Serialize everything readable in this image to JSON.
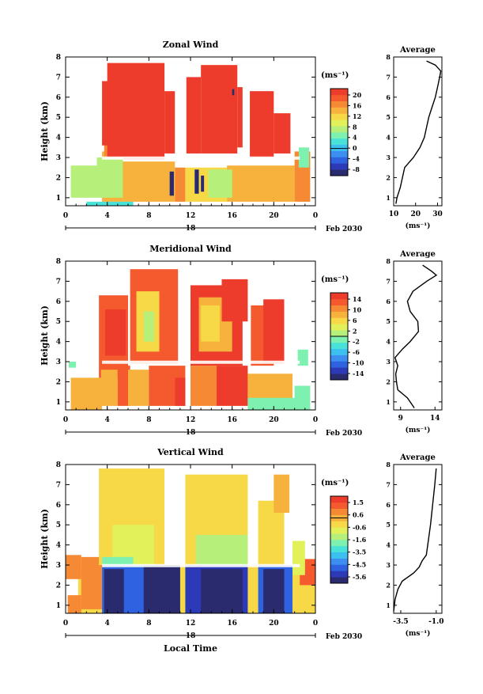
{
  "chart_data": [
    {
      "type": "heatmap",
      "title": "Zonal Wind",
      "ylabel": "Height (km)",
      "unit_label": "(ms⁻¹)",
      "x_ticks": [
        "0",
        "4",
        "8",
        "12",
        "16",
        "20",
        "0"
      ],
      "y_ticks": [
        "1",
        "2",
        "3",
        "4",
        "5",
        "6",
        "7",
        "8"
      ],
      "ylim": [
        0.6,
        8.0
      ],
      "xlim": [
        0,
        24
      ],
      "date_day": "18",
      "date_label": "Feb 2030",
      "colorbar_ticks": [
        "20",
        "16",
        "12",
        "8",
        "4",
        "0",
        "-4",
        "-8"
      ],
      "colorbar_range": [
        -10,
        22
      ],
      "average": {
        "title": "Average",
        "x_ticks": [
          "10",
          "20",
          "30"
        ],
        "xlim": [
          10,
          32
        ],
        "xlabel": "(ms⁻¹)",
        "profile_heights": [
          0.7,
          1.0,
          1.5,
          2.0,
          2.5,
          3.0,
          3.5,
          4.0,
          4.5,
          5.0,
          5.5,
          6.0,
          6.5,
          7.0,
          7.3,
          7.6,
          7.8
        ],
        "profile_values": [
          11,
          11.5,
          13,
          14,
          15,
          19,
          22,
          24,
          25,
          26,
          27.5,
          29,
          30,
          31,
          31.5,
          29,
          25
        ]
      },
      "blocks": [
        {
          "x0": 3.5,
          "x1": 5.5,
          "y0": 0.8,
          "y1": 3.3,
          "v": 14
        },
        {
          "x0": 3.7,
          "x1": 6.0,
          "y0": 3.0,
          "y1": 4.2,
          "v": 16
        },
        {
          "x0": 3.5,
          "x1": 7.0,
          "y0": 3.6,
          "y1": 6.8,
          "v": 22
        },
        {
          "x0": 4.0,
          "x1": 9.5,
          "y0": 2.9,
          "y1": 7.7,
          "v": 22
        },
        {
          "x0": 9.5,
          "x1": 10.5,
          "y0": 3.2,
          "y1": 6.3,
          "v": 22
        },
        {
          "x0": 11.6,
          "x1": 13.0,
          "y0": 3.2,
          "y1": 7.0,
          "v": 22
        },
        {
          "x0": 13.0,
          "x1": 16.5,
          "y0": 3.2,
          "y1": 7.6,
          "v": 22
        },
        {
          "x0": 16.5,
          "x1": 17.0,
          "y0": 3.5,
          "y1": 6.5,
          "v": 22
        },
        {
          "x0": 17.7,
          "x1": 20.0,
          "y0": 3.0,
          "y1": 6.3,
          "v": 22
        },
        {
          "x0": 20.0,
          "x1": 21.6,
          "y0": 3.2,
          "y1": 5.2,
          "v": 22
        },
        {
          "x0": 0.5,
          "x1": 3.0,
          "y0": 1.0,
          "y1": 2.6,
          "v": 6
        },
        {
          "x0": 3.0,
          "x1": 5.5,
          "y0": 1.0,
          "y1": 3.0,
          "v": 8
        },
        {
          "x0": 5.5,
          "x1": 10.5,
          "y0": 0.8,
          "y1": 2.8,
          "v": 14
        },
        {
          "x0": 10.5,
          "x1": 11.5,
          "y0": 0.8,
          "y1": 2.5,
          "v": 16
        },
        {
          "x0": 11.5,
          "x1": 15.5,
          "y0": 0.8,
          "y1": 2.5,
          "v": 12
        },
        {
          "x0": 15.5,
          "x1": 18.0,
          "y0": 0.8,
          "y1": 2.6,
          "v": 14
        },
        {
          "x0": 18.0,
          "x1": 22.0,
          "y0": 0.8,
          "y1": 2.6,
          "v": 14
        },
        {
          "x0": 22.0,
          "x1": 23.5,
          "y0": 0.8,
          "y1": 3.3,
          "v": 16
        },
        {
          "x0": 2.0,
          "x1": 6.5,
          "y0": 0.6,
          "y1": 0.8,
          "v": 2
        },
        {
          "x0": 13.7,
          "x1": 16.0,
          "y0": 1.0,
          "y1": 2.4,
          "v": 8
        },
        {
          "x0": 10.0,
          "x1": 10.4,
          "y0": 1.1,
          "y1": 2.3,
          "v": -8
        },
        {
          "x0": 12.4,
          "x1": 12.8,
          "y0": 1.2,
          "y1": 2.4,
          "v": -8
        },
        {
          "x0": 13.0,
          "x1": 13.3,
          "y0": 1.3,
          "y1": 2.1,
          "v": -8
        },
        {
          "x0": 22.4,
          "x1": 23.4,
          "y0": 2.5,
          "y1": 3.5,
          "v": 4
        },
        {
          "x0": 16.0,
          "x1": 16.2,
          "y0": 6.1,
          "y1": 6.4,
          "v": -8
        }
      ]
    },
    {
      "type": "heatmap",
      "title": "Meridional Wind",
      "ylabel": "Height (km)",
      "unit_label": "(ms⁻¹)",
      "x_ticks": [
        "0",
        "4",
        "8",
        "12",
        "16",
        "20",
        "0"
      ],
      "y_ticks": [
        "1",
        "2",
        "3",
        "4",
        "5",
        "6",
        "7",
        "8"
      ],
      "ylim": [
        0.6,
        8.0
      ],
      "xlim": [
        0,
        24
      ],
      "date_day": "18",
      "date_label": "Feb 2030",
      "colorbar_ticks": [
        "14",
        "10",
        "6",
        "2",
        "-2",
        "-6",
        "-10",
        "-14"
      ],
      "colorbar_range": [
        -16,
        16
      ],
      "average": {
        "title": "Average",
        "x_ticks": [
          "9",
          "14"
        ],
        "xlim": [
          8,
          15
        ],
        "xlabel": "(ms⁻¹)",
        "profile_heights": [
          0.7,
          1.2,
          1.6,
          2.0,
          2.4,
          2.8,
          3.2,
          3.6,
          4.0,
          4.5,
          5.0,
          5.5,
          6.0,
          6.5,
          7.0,
          7.3,
          7.5,
          7.8
        ],
        "profile_values": [
          11,
          10,
          8.6,
          8.4,
          8.3,
          8.6,
          8.2,
          9.2,
          10.4,
          11.6,
          11.5,
          10.4,
          10.0,
          10.8,
          12.8,
          14.2,
          13.5,
          12.2
        ]
      },
      "blocks": [
        {
          "x0": 0.5,
          "x1": 3.5,
          "y0": 0.6,
          "y1": 2.2,
          "v": 7
        },
        {
          "x0": 3.2,
          "x1": 6.0,
          "y0": 2.2,
          "y1": 6.3,
          "v": 12
        },
        {
          "x0": 3.8,
          "x1": 5.8,
          "y0": 3.3,
          "y1": 5.6,
          "v": 16
        },
        {
          "x0": 3.4,
          "x1": 5.0,
          "y0": 0.8,
          "y1": 2.6,
          "v": 8
        },
        {
          "x0": 5.0,
          "x1": 6.2,
          "y0": 0.8,
          "y1": 2.8,
          "v": 12
        },
        {
          "x0": 6.2,
          "x1": 10.8,
          "y0": 2.9,
          "y1": 7.6,
          "v": 12
        },
        {
          "x0": 6.8,
          "x1": 9.0,
          "y0": 3.5,
          "y1": 6.5,
          "v": 6
        },
        {
          "x0": 7.5,
          "x1": 8.5,
          "y0": 4.0,
          "y1": 5.5,
          "v": 2
        },
        {
          "x0": 6.0,
          "x1": 8.0,
          "y0": 0.8,
          "y1": 2.6,
          "v": 7
        },
        {
          "x0": 8.0,
          "x1": 11.5,
          "y0": 0.8,
          "y1": 2.8,
          "v": 12
        },
        {
          "x0": 10.5,
          "x1": 11.5,
          "y0": 0.8,
          "y1": 2.2,
          "v": 16
        },
        {
          "x0": 12.0,
          "x1": 17.0,
          "y0": 2.8,
          "y1": 6.8,
          "v": 14
        },
        {
          "x0": 12.8,
          "x1": 16.0,
          "y0": 3.5,
          "y1": 6.2,
          "v": 8
        },
        {
          "x0": 13.0,
          "x1": 14.8,
          "y0": 4.0,
          "y1": 5.8,
          "v": 6
        },
        {
          "x0": 15.0,
          "x1": 17.5,
          "y0": 5.0,
          "y1": 7.1,
          "v": 16
        },
        {
          "x0": 12.0,
          "x1": 14.5,
          "y0": 0.8,
          "y1": 2.8,
          "v": 10
        },
        {
          "x0": 14.5,
          "x1": 17.5,
          "y0": 0.8,
          "y1": 2.8,
          "v": 16
        },
        {
          "x0": 17.5,
          "x1": 21.8,
          "y0": 0.8,
          "y1": 2.4,
          "v": 8
        },
        {
          "x0": 17.8,
          "x1": 20.0,
          "y0": 2.8,
          "y1": 5.8,
          "v": 12
        },
        {
          "x0": 19.0,
          "x1": 21.0,
          "y0": 2.9,
          "y1": 6.1,
          "v": 16
        },
        {
          "x0": 17.5,
          "x1": 23.5,
          "y0": 0.6,
          "y1": 1.2,
          "v": -1
        },
        {
          "x0": 22.0,
          "x1": 23.5,
          "y0": 1.0,
          "y1": 1.8,
          "v": -2
        },
        {
          "x0": 22.3,
          "x1": 23.3,
          "y0": 2.8,
          "y1": 3.6,
          "v": -2
        },
        {
          "x0": 0.3,
          "x1": 1.0,
          "y0": 2.7,
          "y1": 3.0,
          "v": -1
        }
      ]
    },
    {
      "type": "heatmap",
      "title": "Vertical Wind",
      "ylabel": "Height (km)",
      "xlabel": "Local Time",
      "unit_label": "(ms⁻¹)",
      "x_ticks": [
        "0",
        "4",
        "8",
        "12",
        "16",
        "20",
        "0"
      ],
      "y_ticks": [
        "1",
        "2",
        "3",
        "4",
        "5",
        "6",
        "7",
        "8"
      ],
      "ylim": [
        0.6,
        8.0
      ],
      "xlim": [
        0,
        24
      ],
      "date_day": "18",
      "date_label": "Feb 2030",
      "colorbar_ticks": [
        "1.5",
        "0.6",
        "-0.6",
        "-1.6",
        "-3.5",
        "-4.5",
        "-5.6"
      ],
      "colorbar_range": [
        -6.0,
        2.0
      ],
      "average": {
        "title": "Average",
        "x_ticks": [
          "-3.5",
          "-1.0"
        ],
        "xlim": [
          -4.0,
          -0.6
        ],
        "xlabel": "(ms⁻¹)",
        "profile_heights": [
          0.7,
          1.3,
          1.8,
          2.2,
          2.6,
          2.9,
          3.2,
          3.5,
          4.0,
          5.0,
          6.0,
          7.0,
          7.8
        ],
        "profile_values": [
          -4.0,
          -3.9,
          -3.7,
          -3.4,
          -2.6,
          -2.2,
          -2.0,
          -1.7,
          -1.6,
          -1.4,
          -1.25,
          -1.1,
          -1.0
        ]
      },
      "blocks": [
        {
          "x0": 1.2,
          "x1": 24.0,
          "y0": 0.6,
          "y1": 3.0,
          "v": -0.6
        },
        {
          "x0": 1.5,
          "x1": 3.5,
          "y0": 0.8,
          "y1": 3.4,
          "v": 0.6
        },
        {
          "x0": 0.0,
          "x1": 1.5,
          "y0": 2.3,
          "y1": 3.5,
          "v": 0.6
        },
        {
          "x0": 3.2,
          "x1": 9.5,
          "y0": 3.0,
          "y1": 7.8,
          "v": -0.3
        },
        {
          "x0": 4.5,
          "x1": 8.5,
          "y0": 3.0,
          "y1": 5.0,
          "v": -1.1
        },
        {
          "x0": 3.5,
          "x1": 6.5,
          "y0": 3.0,
          "y1": 3.4,
          "v": -2.2
        },
        {
          "x0": 3.5,
          "x1": 11.0,
          "y0": 0.6,
          "y1": 3.0,
          "v": -4.8
        },
        {
          "x0": 3.7,
          "x1": 5.6,
          "y0": 0.6,
          "y1": 2.8,
          "v": -6.0
        },
        {
          "x0": 7.5,
          "x1": 11.0,
          "y0": 0.6,
          "y1": 3.0,
          "v": -5.8
        },
        {
          "x0": 11.5,
          "x1": 17.5,
          "y0": 3.0,
          "y1": 7.5,
          "v": -0.6
        },
        {
          "x0": 12.5,
          "x1": 17.5,
          "y0": 3.0,
          "y1": 4.5,
          "v": -1.6
        },
        {
          "x0": 11.5,
          "x1": 17.5,
          "y0": 0.6,
          "y1": 3.0,
          "v": -5.0
        },
        {
          "x0": 13.0,
          "x1": 17.0,
          "y0": 0.6,
          "y1": 2.8,
          "v": -5.6
        },
        {
          "x0": 18.5,
          "x1": 21.0,
          "y0": 3.0,
          "y1": 6.2,
          "v": -0.6
        },
        {
          "x0": 20.0,
          "x1": 21.5,
          "y0": 5.6,
          "y1": 7.5,
          "v": 0.2
        },
        {
          "x0": 18.5,
          "x1": 21.8,
          "y0": 0.6,
          "y1": 3.0,
          "v": -4.8
        },
        {
          "x0": 19.0,
          "x1": 21.0,
          "y0": 0.6,
          "y1": 2.8,
          "v": -5.6
        },
        {
          "x0": 22.5,
          "x1": 24.0,
          "y0": 2.0,
          "y1": 3.3,
          "v": 1.1
        },
        {
          "x0": 21.8,
          "x1": 23.0,
          "y0": 2.5,
          "y1": 4.2,
          "v": -1.0
        },
        {
          "x0": 0.2,
          "x1": 1.5,
          "y0": 0.6,
          "y1": 1.5,
          "v": 0.8
        }
      ]
    }
  ]
}
